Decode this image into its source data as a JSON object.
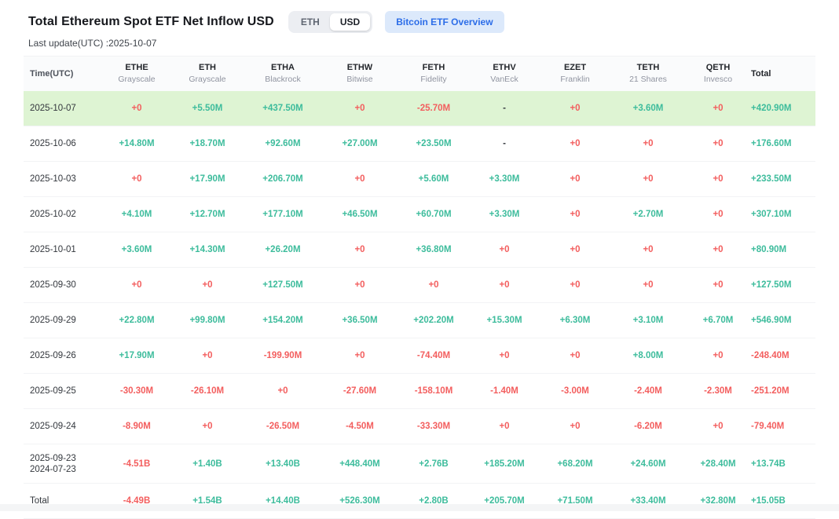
{
  "page": {
    "title": "Total Ethereum Spot ETF Net Inflow USD",
    "last_update": "Last update(UTC) :2025-10-07",
    "toggle": {
      "options": [
        "ETH",
        "USD"
      ],
      "selected": "USD"
    },
    "overview_button": "Bitcoin ETF Overview"
  },
  "colors": {
    "positive": "#3dbc9c",
    "negative": "#f35e5e",
    "neutral": "#33373d",
    "highlight_row_bg": "#def4d3",
    "accent_blue": "#2c6de8"
  },
  "table": {
    "time_header": "Time(UTC)",
    "columns": [
      {
        "code": "ETHE",
        "name": "Grayscale"
      },
      {
        "code": "ETH",
        "name": "Grayscale"
      },
      {
        "code": "ETHA",
        "name": "Blackrock"
      },
      {
        "code": "ETHW",
        "name": "Bitwise"
      },
      {
        "code": "FETH",
        "name": "Fidelity"
      },
      {
        "code": "ETHV",
        "name": "VanEck"
      },
      {
        "code": "EZET",
        "name": "Franklin"
      },
      {
        "code": "TETH",
        "name": "21 Shares"
      },
      {
        "code": "QETH",
        "name": "Invesco"
      },
      {
        "code": "Total",
        "name": ""
      }
    ],
    "rows": [
      {
        "date": [
          "2025-10-07"
        ],
        "highlight": true,
        "values": [
          "+0",
          "+5.50M",
          "+437.50M",
          "+0",
          "-25.70M",
          "-",
          "+0",
          "+3.60M",
          "+0",
          "+420.90M"
        ]
      },
      {
        "date": [
          "2025-10-06"
        ],
        "values": [
          "+14.80M",
          "+18.70M",
          "+92.60M",
          "+27.00M",
          "+23.50M",
          "-",
          "+0",
          "+0",
          "+0",
          "+176.60M"
        ]
      },
      {
        "date": [
          "2025-10-03"
        ],
        "values": [
          "+0",
          "+17.90M",
          "+206.70M",
          "+0",
          "+5.60M",
          "+3.30M",
          "+0",
          "+0",
          "+0",
          "+233.50M"
        ]
      },
      {
        "date": [
          "2025-10-02"
        ],
        "values": [
          "+4.10M",
          "+12.70M",
          "+177.10M",
          "+46.50M",
          "+60.70M",
          "+3.30M",
          "+0",
          "+2.70M",
          "+0",
          "+307.10M"
        ]
      },
      {
        "date": [
          "2025-10-01"
        ],
        "values": [
          "+3.60M",
          "+14.30M",
          "+26.20M",
          "+0",
          "+36.80M",
          "+0",
          "+0",
          "+0",
          "+0",
          "+80.90M"
        ]
      },
      {
        "date": [
          "2025-09-30"
        ],
        "values": [
          "+0",
          "+0",
          "+127.50M",
          "+0",
          "+0",
          "+0",
          "+0",
          "+0",
          "+0",
          "+127.50M"
        ]
      },
      {
        "date": [
          "2025-09-29"
        ],
        "values": [
          "+22.80M",
          "+99.80M",
          "+154.20M",
          "+36.50M",
          "+202.20M",
          "+15.30M",
          "+6.30M",
          "+3.10M",
          "+6.70M",
          "+546.90M"
        ]
      },
      {
        "date": [
          "2025-09-26"
        ],
        "values": [
          "+17.90M",
          "+0",
          "-199.90M",
          "+0",
          "-74.40M",
          "+0",
          "+0",
          "+8.00M",
          "+0",
          "-248.40M"
        ]
      },
      {
        "date": [
          "2025-09-25"
        ],
        "values": [
          "-30.30M",
          "-26.10M",
          "+0",
          "-27.60M",
          "-158.10M",
          "-1.40M",
          "-3.00M",
          "-2.40M",
          "-2.30M",
          "-251.20M"
        ]
      },
      {
        "date": [
          "2025-09-24"
        ],
        "values": [
          "-8.90M",
          "+0",
          "-26.50M",
          "-4.50M",
          "-33.30M",
          "+0",
          "+0",
          "-6.20M",
          "+0",
          "-79.40M"
        ]
      },
      {
        "date": [
          "2025-09-23",
          "2024-07-23"
        ],
        "values": [
          "-4.51B",
          "+1.40B",
          "+13.40B",
          "+448.40M",
          "+2.76B",
          "+185.20M",
          "+68.20M",
          "+24.60M",
          "+28.40M",
          "+13.74B"
        ]
      },
      {
        "date": [
          "Total"
        ],
        "is_total": true,
        "values": [
          "-4.49B",
          "+1.54B",
          "+14.40B",
          "+526.30M",
          "+2.80B",
          "+205.70M",
          "+71.50M",
          "+33.40M",
          "+32.80M",
          "+15.05B"
        ]
      }
    ]
  }
}
